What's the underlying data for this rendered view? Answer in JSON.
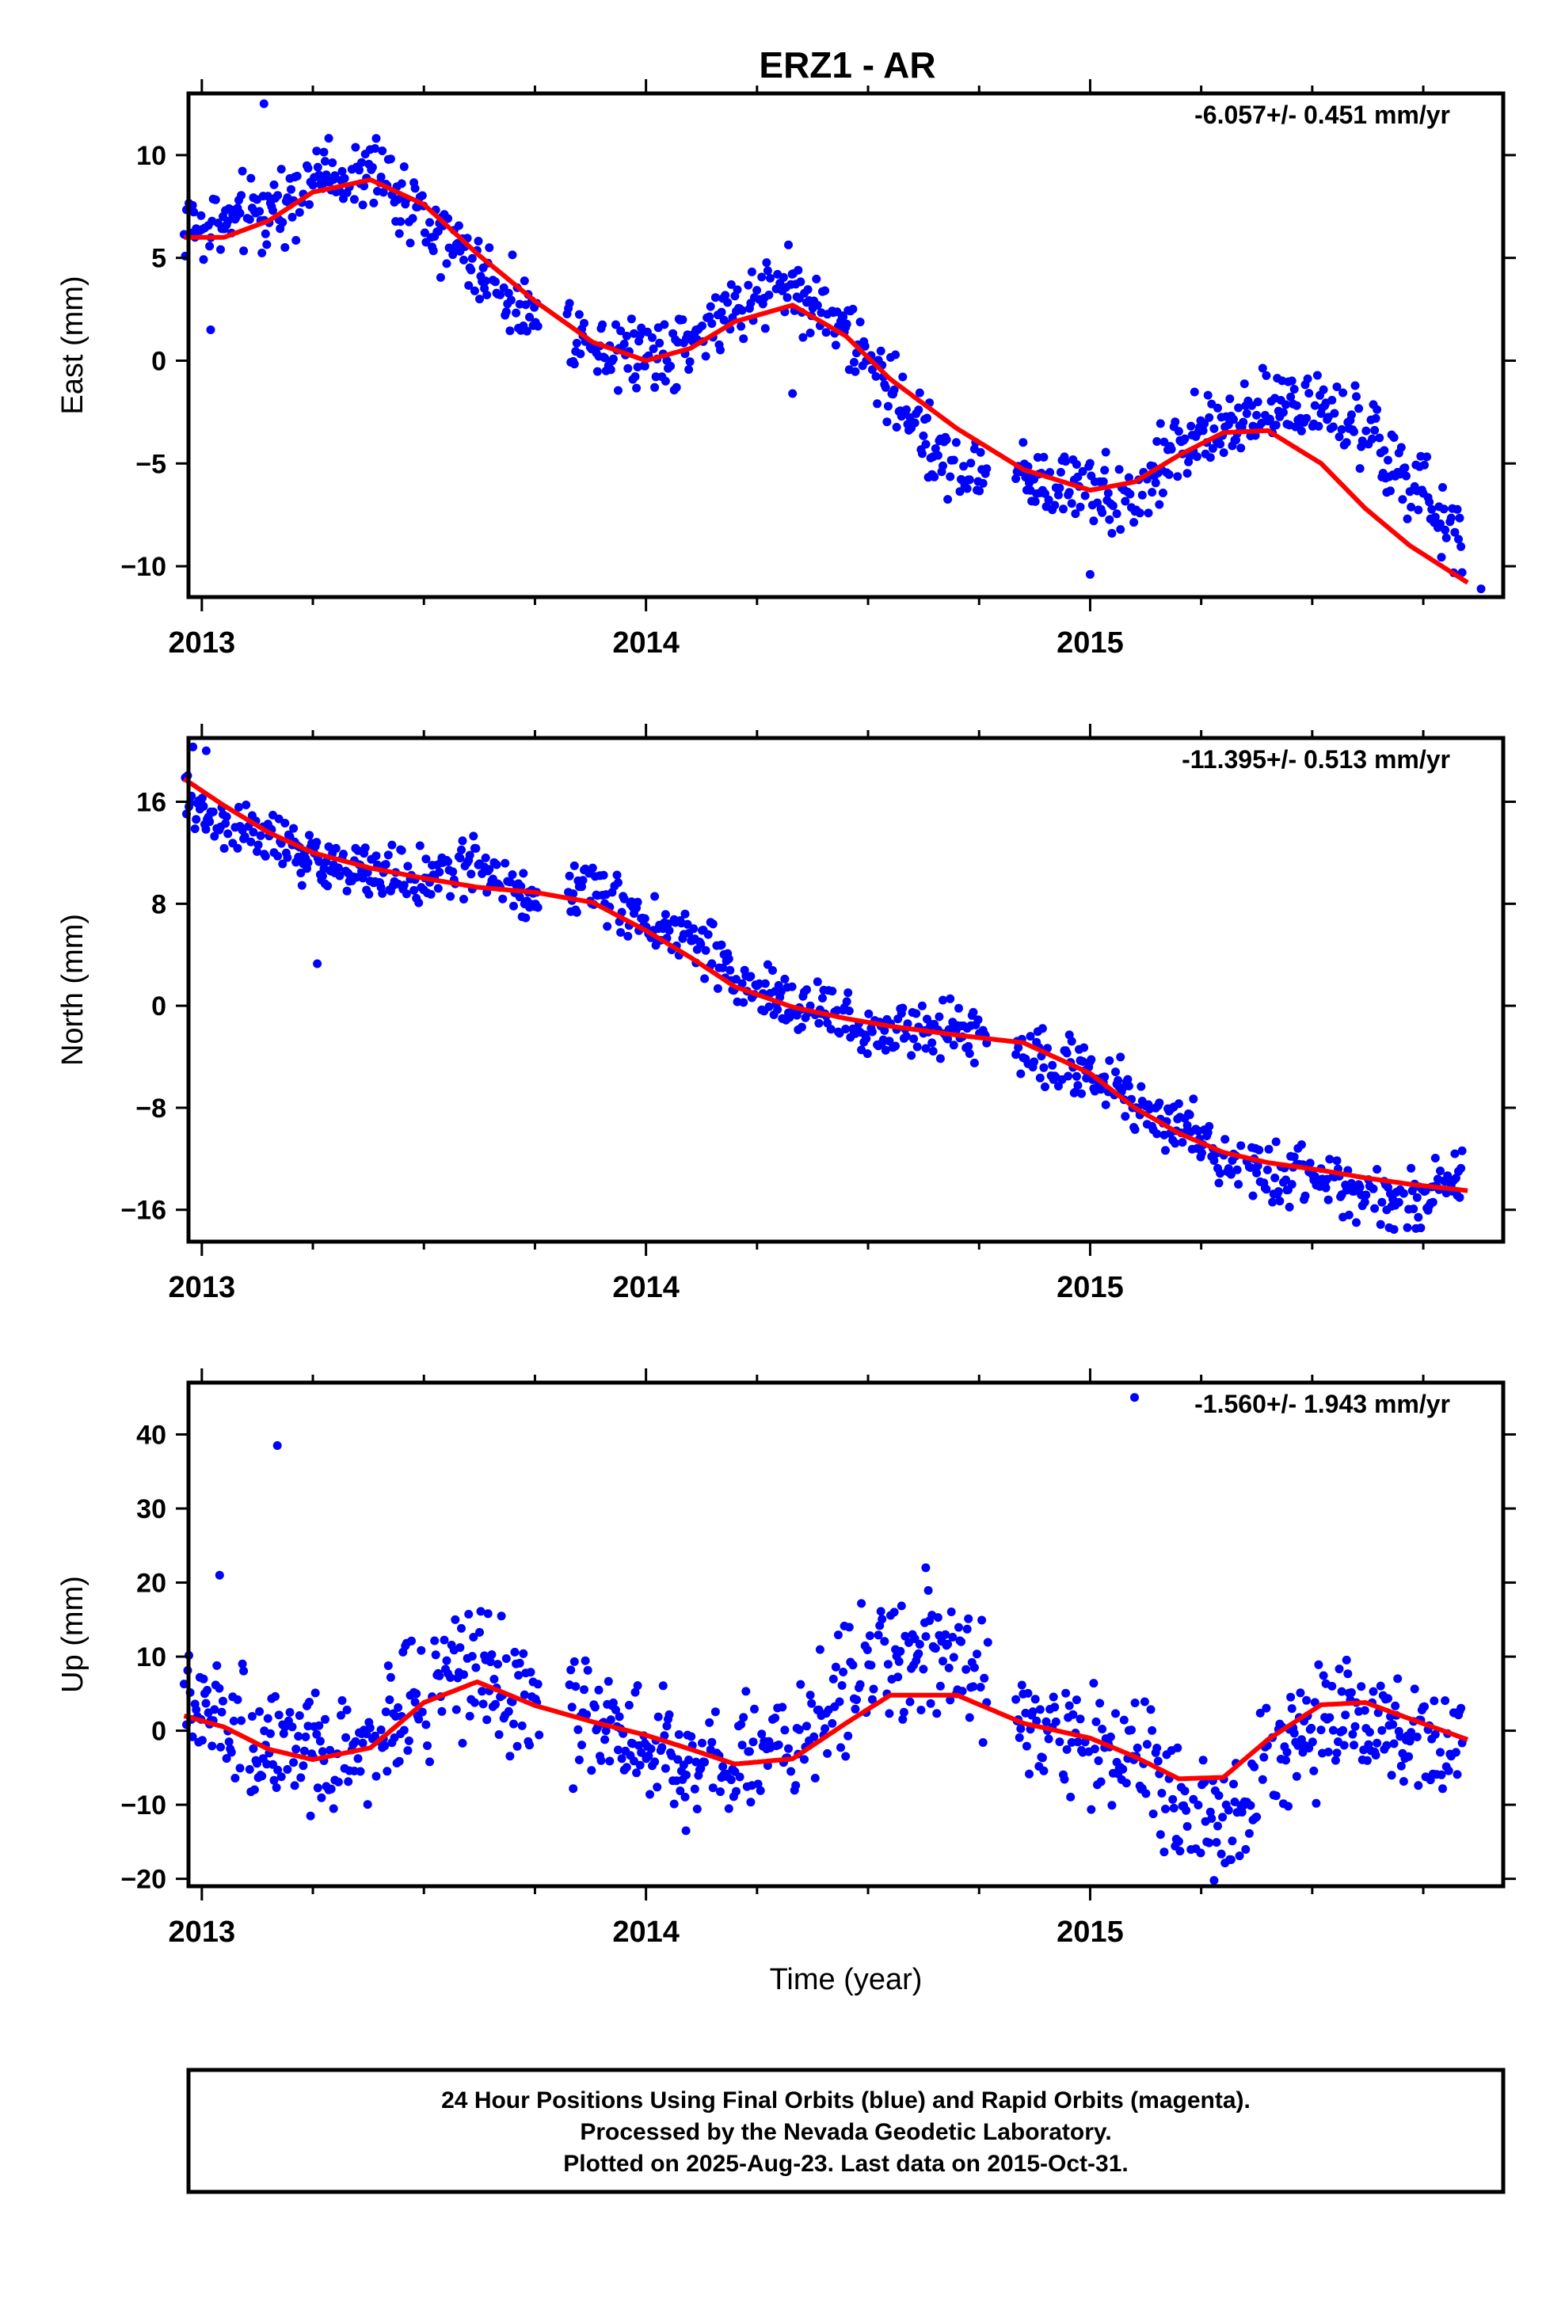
{
  "title": "ERZ1 - AR",
  "xlabel": "Time (year)",
  "footer": [
    "24 Hour Positions Using Final Orbits (blue) and Rapid Orbits (magenta).",
    "Processed by the Nevada Geodetic Laboratory.",
    "Plotted on 2025-Aug-23. Last data on 2015-Oct-31."
  ],
  "colors": {
    "points": "#0000ff",
    "fit": "#ff0000",
    "frame": "#000000"
  },
  "chart_data": [
    {
      "type": "scatter",
      "ylabel": "East (mm)",
      "rate": "-6.057+/- 0.451 mm/yr",
      "xlim": [
        2012.97,
        2015.93
      ],
      "ylim": [
        -11.5,
        13
      ],
      "yticks": [
        10,
        5,
        0,
        -5,
        -10
      ],
      "yticklabels": [
        "10",
        "5",
        "0",
        "−5",
        "−10"
      ],
      "xticks": [
        2013,
        2014,
        2015
      ],
      "xticklabels": [
        "2013",
        "2014",
        "2015"
      ],
      "minor_xticks": [
        2013.25,
        2013.5,
        2013.75,
        2014.25,
        2014.5,
        2014.75,
        2015.25,
        2015.5,
        2015.75
      ],
      "fit_curve": {
        "x": [
          2012.96,
          2013.05,
          2013.15,
          2013.25,
          2013.38,
          2013.5,
          2013.62,
          2013.75,
          2013.88,
          2014.0,
          2014.1,
          2014.2,
          2014.33,
          2014.45,
          2014.55,
          2014.7,
          2014.85,
          2015.0,
          2015.1,
          2015.2,
          2015.3,
          2015.4,
          2015.52,
          2015.62,
          2015.72,
          2015.85
        ],
        "y": [
          6.0,
          6.0,
          6.8,
          8.2,
          8.8,
          7.6,
          5.2,
          2.9,
          0.9,
          0.0,
          0.6,
          1.9,
          2.7,
          1.2,
          -0.9,
          -3.3,
          -5.3,
          -6.3,
          -5.9,
          -4.6,
          -3.5,
          -3.4,
          -5.0,
          -7.2,
          -9.0,
          -10.8
        ]
      },
      "anchors": {
        "x": [
          2012.96,
          2013.05,
          2013.15,
          2013.25,
          2013.38,
          2013.5,
          2013.62,
          2013.75,
          2013.88,
          2014.0,
          2014.1,
          2014.2,
          2014.33,
          2014.45,
          2014.55,
          2014.7,
          2014.85,
          2015.0,
          2015.1,
          2015.2,
          2015.3,
          2015.4,
          2015.52,
          2015.62,
          2015.72,
          2015.85
        ],
        "y": [
          6.5,
          6.6,
          7.3,
          8.9,
          9.2,
          7.0,
          4.5,
          2.2,
          1.0,
          0.4,
          0.9,
          2.6,
          3.8,
          1.5,
          -1.4,
          -5.5,
          -5.7,
          -6.1,
          -6.9,
          -4.2,
          -3.0,
          -2.0,
          -2.4,
          -3.6,
          -6.0,
          -9.0
        ]
      },
      "spread": 0.9,
      "gaps": [
        [
          2013.76,
          2013.82
        ],
        [
          2014.77,
          2014.83
        ],
        [
          2015.86,
          2015.9
        ]
      ],
      "outliers": {
        "x": [
          2013.14,
          2013.02,
          2014.33,
          2015.0,
          2015.88
        ],
        "y": [
          12.5,
          1.5,
          -1.6,
          -10.4,
          -11.1
        ]
      }
    },
    {
      "type": "scatter",
      "ylabel": "North (mm)",
      "rate": "-11.395+/- 0.513 mm/yr",
      "xlim": [
        2012.97,
        2015.93
      ],
      "ylim": [
        -18.5,
        21
      ],
      "yticks": [
        16,
        8,
        0,
        -8,
        -16
      ],
      "yticklabels": [
        "16",
        "8",
        "0",
        "−8",
        "−16"
      ],
      "xticks": [
        2013,
        2014,
        2015
      ],
      "xticklabels": [
        "2013",
        "2014",
        "2015"
      ],
      "minor_xticks": [
        2013.25,
        2013.5,
        2013.75,
        2014.25,
        2014.5,
        2014.75,
        2015.25,
        2015.5,
        2015.75
      ],
      "fit_curve": {
        "x": [
          2012.96,
          2013.05,
          2013.15,
          2013.25,
          2013.38,
          2013.5,
          2013.62,
          2013.75,
          2013.88,
          2014.0,
          2014.1,
          2014.2,
          2014.33,
          2014.45,
          2014.55,
          2014.7,
          2014.85,
          2015.0,
          2015.1,
          2015.2,
          2015.3,
          2015.4,
          2015.52,
          2015.62,
          2015.72,
          2015.85
        ],
        "y": [
          17.8,
          15.7,
          13.6,
          12.0,
          10.8,
          10.0,
          9.3,
          8.9,
          8.1,
          5.9,
          3.8,
          1.5,
          -0.1,
          -1.0,
          -1.6,
          -2.3,
          -2.9,
          -5.3,
          -8.0,
          -10.0,
          -11.5,
          -12.3,
          -12.9,
          -13.5,
          -14.0,
          -14.5
        ]
      },
      "anchors": {
        "x": [
          2012.96,
          2013.05,
          2013.15,
          2013.25,
          2013.38,
          2013.5,
          2013.62,
          2013.75,
          2013.88,
          2014.0,
          2014.1,
          2014.2,
          2014.33,
          2014.45,
          2014.55,
          2014.7,
          2014.85,
          2015.0,
          2015.1,
          2015.2,
          2015.3,
          2015.4,
          2015.52,
          2015.62,
          2015.72,
          2015.85
        ],
        "y": [
          16.5,
          14.3,
          13.0,
          11.5,
          10.3,
          10.0,
          11.0,
          8.2,
          9.6,
          6.0,
          5.5,
          2.0,
          0.3,
          -1.3,
          -2.5,
          -1.5,
          -3.5,
          -5.0,
          -7.5,
          -9.5,
          -12.0,
          -13.0,
          -14.0,
          -15.0,
          -15.0,
          -13.5
        ]
      },
      "spread": 1.1,
      "gaps": [
        [
          2013.76,
          2013.82
        ],
        [
          2014.77,
          2014.83
        ],
        [
          2015.86,
          2015.9
        ]
      ],
      "outliers": {
        "x": [
          2013.26,
          2012.98,
          2013.01
        ],
        "y": [
          3.3,
          20.3,
          20.0
        ]
      }
    },
    {
      "type": "scatter",
      "ylabel": "Up (mm)",
      "rate": "-1.560+/- 1.943 mm/yr",
      "xlim": [
        2012.97,
        2015.93
      ],
      "ylim": [
        -21,
        47
      ],
      "yticks": [
        40,
        30,
        20,
        10,
        0,
        -10,
        -20
      ],
      "yticklabels": [
        "40",
        "30",
        "20",
        "10",
        "0",
        "−10",
        "−20"
      ],
      "xticks": [
        2013,
        2014,
        2015
      ],
      "xticklabels": [
        "2013",
        "2014",
        "2015"
      ],
      "minor_xticks": [
        2013.25,
        2013.5,
        2013.75,
        2014.25,
        2014.5,
        2014.75,
        2015.25,
        2015.5,
        2015.75
      ],
      "fit_curve": {
        "x": [
          2012.96,
          2013.05,
          2013.15,
          2013.25,
          2013.38,
          2013.5,
          2013.62,
          2013.75,
          2013.88,
          2014.0,
          2014.1,
          2014.2,
          2014.33,
          2014.45,
          2014.55,
          2014.7,
          2014.85,
          2015.0,
          2015.1,
          2015.2,
          2015.3,
          2015.4,
          2015.52,
          2015.62,
          2015.72,
          2015.85
        ],
        "y": [
          2.0,
          0.5,
          -2.5,
          -3.9,
          -2.3,
          3.8,
          6.6,
          3.4,
          1.2,
          -0.6,
          -2.5,
          -4.5,
          -3.8,
          1.0,
          4.8,
          4.8,
          1.0,
          -1.0,
          -3.5,
          -6.5,
          -6.3,
          -1.2,
          3.5,
          3.8,
          1.6,
          -1.2
        ]
      },
      "anchors": {
        "x": [
          2012.96,
          2013.05,
          2013.15,
          2013.25,
          2013.38,
          2013.5,
          2013.62,
          2013.75,
          2013.88,
          2014.0,
          2014.1,
          2014.2,
          2014.33,
          2014.45,
          2014.55,
          2014.7,
          2014.85,
          2015.0,
          2015.1,
          2015.2,
          2015.3,
          2015.4,
          2015.52,
          2015.62,
          2015.72,
          2015.85
        ],
        "y": [
          4.0,
          2.0,
          -3.0,
          -4.0,
          -2.0,
          6.0,
          9.0,
          3.0,
          2.0,
          -1.0,
          -3.5,
          -3.5,
          -1.5,
          5.0,
          10.0,
          9.0,
          2.0,
          -1.5,
          -3.0,
          -10.0,
          -12.0,
          -5.0,
          2.0,
          1.5,
          -2.0,
          -3.0
        ]
      },
      "spread": 4.0,
      "gaps": [
        [
          2013.76,
          2013.82
        ],
        [
          2014.77,
          2014.83
        ],
        [
          2015.86,
          2015.9
        ]
      ],
      "outliers": {
        "x": [
          2013.04,
          2013.17,
          2015.1,
          2014.63,
          2014.09
        ],
        "y": [
          21.0,
          38.5,
          45.0,
          22.0,
          -13.5
        ]
      }
    }
  ]
}
